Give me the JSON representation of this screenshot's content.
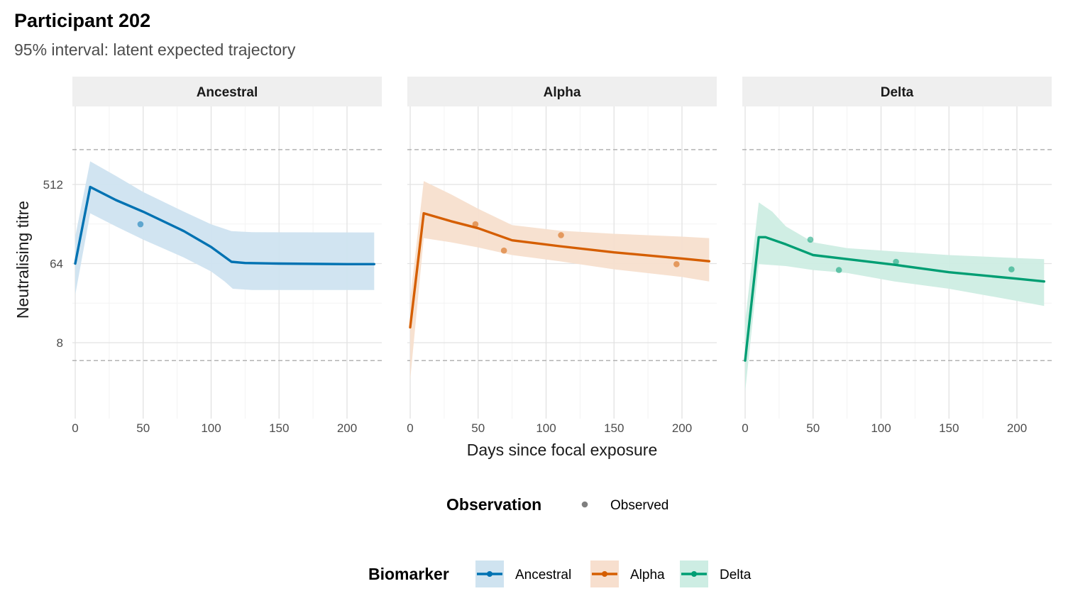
{
  "title": "Participant 202",
  "subtitle": "95% interval: latent expected trajectory",
  "chart_data": {
    "type": "line",
    "facets": [
      "Ancestral",
      "Alpha",
      "Delta"
    ],
    "xlabel": "Days since focal exposure",
    "ylabel": "Neutralising titre",
    "x_scale": "linear",
    "y_scale": "log2",
    "xlim": [
      0,
      220
    ],
    "ylim": [
      2,
      2300
    ],
    "x_ticks": [
      0,
      50,
      100,
      150,
      200
    ],
    "y_ticks": [
      8,
      64,
      512
    ],
    "y_tick_labels": [
      "8",
      "64",
      "512"
    ],
    "reference_lines_y": [
      5,
      1280
    ],
    "reference_line_style": "dashed",
    "grid": true,
    "series": [
      {
        "name": "Ancestral",
        "color": "#0072B2",
        "band_color": "#CFE3F0",
        "trajectory": [
          [
            0,
            64
          ],
          [
            11,
            480
          ],
          [
            30,
            340
          ],
          [
            50,
            250
          ],
          [
            80,
            150
          ],
          [
            100,
            99
          ],
          [
            115,
            67
          ],
          [
            125,
            65
          ],
          [
            150,
            64
          ],
          [
            200,
            63
          ],
          [
            220,
            63
          ]
        ],
        "lower": [
          [
            0,
            28
          ],
          [
            11,
            240
          ],
          [
            30,
            170
          ],
          [
            50,
            120
          ],
          [
            80,
            75
          ],
          [
            100,
            52
          ],
          [
            110,
            40
          ],
          [
            116,
            33
          ],
          [
            130,
            32
          ],
          [
            220,
            32
          ]
        ],
        "upper": [
          [
            0,
            130
          ],
          [
            11,
            940
          ],
          [
            30,
            640
          ],
          [
            50,
            420
          ],
          [
            80,
            250
          ],
          [
            100,
            180
          ],
          [
            115,
            150
          ],
          [
            130,
            146
          ],
          [
            220,
            145
          ]
        ],
        "observed": [
          [
            48,
            180
          ]
        ]
      },
      {
        "name": "Alpha",
        "color": "#D55E00",
        "band_color": "#F7DFCE",
        "trajectory": [
          [
            0,
            12
          ],
          [
            10,
            240
          ],
          [
            30,
            195
          ],
          [
            50,
            162
          ],
          [
            75,
            118
          ],
          [
            110,
            101
          ],
          [
            150,
            86
          ],
          [
            200,
            73
          ],
          [
            220,
            68
          ]
        ],
        "lower": [
          [
            0,
            3
          ],
          [
            10,
            125
          ],
          [
            30,
            112
          ],
          [
            50,
            98
          ],
          [
            75,
            80
          ],
          [
            110,
            68
          ],
          [
            150,
            55
          ],
          [
            200,
            45
          ],
          [
            220,
            40
          ]
        ],
        "upper": [
          [
            0,
            25
          ],
          [
            10,
            560
          ],
          [
            30,
            395
          ],
          [
            50,
            270
          ],
          [
            75,
            176
          ],
          [
            110,
            152
          ],
          [
            150,
            140
          ],
          [
            200,
            130
          ],
          [
            220,
            125
          ]
        ],
        "observed": [
          [
            48,
            180
          ],
          [
            69,
            90
          ],
          [
            111,
            135
          ],
          [
            196,
            63
          ]
        ]
      },
      {
        "name": "Delta",
        "color": "#009E73",
        "band_color": "#CDEDE3",
        "trajectory": [
          [
            0,
            5
          ],
          [
            10,
            128
          ],
          [
            15,
            128
          ],
          [
            30,
            106
          ],
          [
            50,
            80
          ],
          [
            75,
            72
          ],
          [
            110,
            62
          ],
          [
            150,
            51
          ],
          [
            200,
            43
          ],
          [
            220,
            40
          ]
        ],
        "lower": [
          [
            0,
            2.2
          ],
          [
            10,
            63
          ],
          [
            30,
            60
          ],
          [
            50,
            54
          ],
          [
            75,
            50
          ],
          [
            110,
            40
          ],
          [
            150,
            33
          ],
          [
            200,
            24
          ],
          [
            220,
            21
          ]
        ],
        "upper": [
          [
            0,
            14
          ],
          [
            10,
            320
          ],
          [
            20,
            250
          ],
          [
            30,
            170
          ],
          [
            50,
            112
          ],
          [
            75,
            96
          ],
          [
            110,
            88
          ],
          [
            150,
            80
          ],
          [
            200,
            74
          ],
          [
            220,
            72
          ]
        ],
        "observed": [
          [
            48,
            120
          ],
          [
            69,
            54
          ],
          [
            111,
            67
          ],
          [
            196,
            55
          ]
        ]
      }
    ],
    "legends": [
      {
        "title": "Observation",
        "items": [
          {
            "label": "Observed",
            "color": "#7f7f7f"
          }
        ]
      },
      {
        "title": "Biomarker",
        "items": [
          {
            "label": "Ancestral",
            "color": "#0072B2",
            "fill": "#CFE3F0"
          },
          {
            "label": "Alpha",
            "color": "#D55E00",
            "fill": "#F7DFCE"
          },
          {
            "label": "Delta",
            "color": "#009E73",
            "fill": "#CDEDE3"
          }
        ]
      }
    ],
    "legend_position": "bottom"
  }
}
